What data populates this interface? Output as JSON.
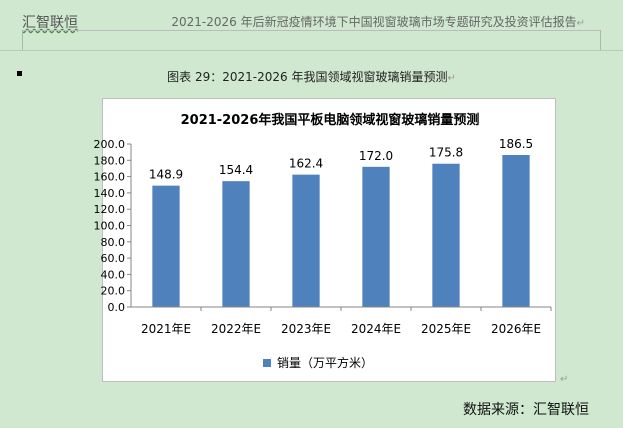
{
  "header": {
    "left": "汇智联恒",
    "right": "2021-2026 年后新冠疫情环境下中国视窗玻璃市场专题研究及投资评估报告"
  },
  "figure_caption": "图表  29：2021-2026 年我国领域视窗玻璃销量预测",
  "source": "数据来源：汇智联恒",
  "chart_data": {
    "type": "bar",
    "title": "2021-2026年我国平板电脑领域视窗玻璃销量预测",
    "categories": [
      "2021年E",
      "2022年E",
      "2023年E",
      "2024年E",
      "2025年E",
      "2026年E"
    ],
    "series": [
      {
        "name": "销量（万平方米）",
        "values": [
          148.9,
          154.4,
          162.4,
          172.0,
          175.8,
          186.5
        ]
      }
    ],
    "data_labels": [
      "148.9",
      "154.4",
      "162.4",
      "172.0",
      "175.8",
      "186.5"
    ],
    "ytick_labels": [
      "0.0",
      "20.0",
      "40.0",
      "60.0",
      "80.0",
      "100.0",
      "120.0",
      "140.0",
      "160.0",
      "180.0",
      "200.0"
    ],
    "ylim": [
      0,
      200
    ],
    "ytick_step": 20,
    "xlabel": "",
    "ylabel": "",
    "grid": false,
    "legend_position": "bottom",
    "bar_color": "#4f81bd"
  }
}
